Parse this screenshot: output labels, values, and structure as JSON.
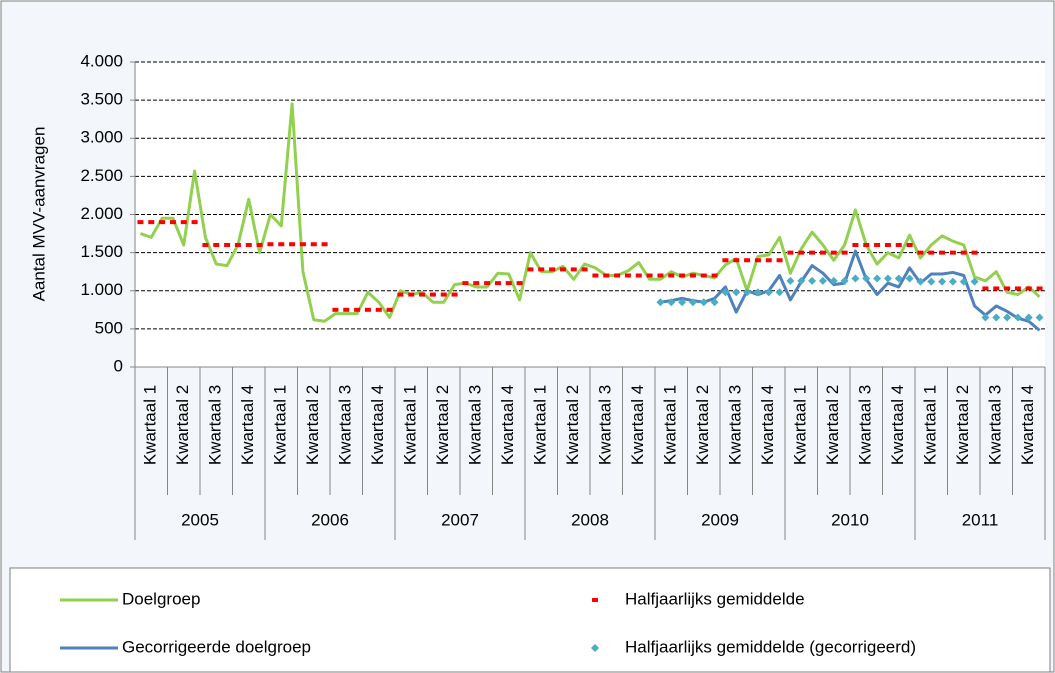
{
  "chart_data": {
    "type": "line",
    "y_label": "Aantal MVV-aanvragen",
    "years": [
      "2005",
      "2006",
      "2007",
      "2008",
      "2009",
      "2010",
      "2011"
    ],
    "quarters": [
      "Kwartaal 1",
      "Kwartaal 2",
      "Kwartaal 3",
      "Kwartaal 4",
      "Kwartaal 1",
      "Kwartaal 2",
      "Kwartaal 3",
      "Kwartaal 4",
      "Kwartaal 1",
      "Kwartaal 2",
      "Kwartaal 3",
      "Kwartaal 4",
      "Kwartaal 1",
      "Kwartaal 2",
      "Kwartaal 3",
      "Kwartaal 4",
      "Kwartaal 1",
      "Kwartaal 2",
      "Kwartaal 3",
      "Kwartaal 4",
      "Kwartaal 1",
      "Kwartaal 2",
      "Kwartaal 3",
      "Kwartaal 4",
      "Kwartaal 1",
      "Kwartaal 2",
      "Kwartaal 3",
      "Kwartaal 4"
    ],
    "ylim": [
      0,
      4000
    ],
    "yticks": [
      0,
      500,
      {
        "value": 1000,
        "label": "1.000"
      },
      {
        "value": 1500,
        "label": "1.500"
      },
      {
        "value": 2000,
        "label": "2.000"
      },
      {
        "value": 2500,
        "label": "2.500"
      },
      {
        "value": 3000,
        "label": "3.000"
      },
      {
        "value": 3500,
        "label": "3.500"
      },
      {
        "value": 4000,
        "label": "4.000"
      }
    ],
    "grid": true,
    "series": [
      {
        "name": "Doelgroep",
        "color": "#92d050",
        "style": "line",
        "values": [
          1750,
          1700,
          1950,
          1950,
          1600,
          2570,
          1700,
          1350,
          1330,
          1600,
          2200,
          1500,
          2000,
          1850,
          3450,
          1250,
          620,
          600,
          700,
          700,
          700,
          980,
          850,
          650,
          1000,
          950,
          980,
          850,
          850,
          1080,
          1100,
          1050,
          1050,
          1230,
          1220,
          880,
          1500,
          1250,
          1250,
          1320,
          1150,
          1350,
          1300,
          1200,
          1200,
          1260,
          1370,
          1150,
          1150,
          1250,
          1180,
          1230,
          1200,
          1170,
          1340,
          1420,
          1000,
          1450,
          1470,
          1700,
          1230,
          1550,
          1770,
          1600,
          1400,
          1600,
          2060,
          1600,
          1350,
          1500,
          1430,
          1730,
          1430,
          1600,
          1720,
          1650,
          1600,
          1180,
          1130,
          1250,
          980,
          950,
          1050,
          920
        ]
      },
      {
        "name": "Halfjaarlijks gemiddelde",
        "color": "#ff0000",
        "style": "dash",
        "values": [
          1900,
          1900,
          1900,
          1900,
          1900,
          1900,
          1600,
          1600,
          1600,
          1600,
          1600,
          1600,
          1610,
          1610,
          1610,
          1610,
          1610,
          1610,
          750,
          750,
          750,
          750,
          750,
          750,
          950,
          950,
          950,
          950,
          950,
          950,
          1100,
          1100,
          1100,
          1100,
          1100,
          1100,
          1280,
          1280,
          1280,
          1280,
          1280,
          1280,
          1200,
          1200,
          1200,
          1200,
          1200,
          1200,
          1200,
          1200,
          1200,
          1200,
          1200,
          1200,
          1400,
          1400,
          1400,
          1400,
          1400,
          1400,
          1500,
          1500,
          1500,
          1500,
          1500,
          1500,
          1600,
          1600,
          1600,
          1600,
          1600,
          1600,
          1500,
          1500,
          1500,
          1500,
          1500,
          1500,
          1030,
          1030,
          1030,
          1030,
          1030,
          1030
        ]
      },
      {
        "name": "Gecorrigeerde doelgroep",
        "color": "#4f81bd",
        "style": "line",
        "values": [
          null,
          null,
          null,
          null,
          null,
          null,
          null,
          null,
          null,
          null,
          null,
          null,
          null,
          null,
          null,
          null,
          null,
          null,
          null,
          null,
          null,
          null,
          null,
          null,
          null,
          null,
          null,
          null,
          null,
          null,
          null,
          null,
          null,
          null,
          null,
          null,
          null,
          null,
          null,
          null,
          null,
          null,
          null,
          null,
          null,
          null,
          null,
          null,
          850,
          870,
          900,
          870,
          850,
          900,
          1050,
          720,
          1000,
          950,
          1000,
          1200,
          880,
          1120,
          1330,
          1230,
          1080,
          1100,
          1520,
          1150,
          950,
          1100,
          1050,
          1300,
          1100,
          1220,
          1220,
          1240,
          1200,
          800,
          680,
          800,
          730,
          640,
          600,
          480
        ]
      },
      {
        "name": "Halfjaarlijks gemiddelde (gecorrigeerd)",
        "color": "#4bacc6",
        "style": "diamond",
        "values": [
          null,
          null,
          null,
          null,
          null,
          null,
          null,
          null,
          null,
          null,
          null,
          null,
          null,
          null,
          null,
          null,
          null,
          null,
          null,
          null,
          null,
          null,
          null,
          null,
          null,
          null,
          null,
          null,
          null,
          null,
          null,
          null,
          null,
          null,
          null,
          null,
          null,
          null,
          null,
          null,
          null,
          null,
          null,
          null,
          null,
          null,
          null,
          null,
          850,
          850,
          850,
          850,
          850,
          850,
          980,
          980,
          980,
          980,
          980,
          980,
          1130,
          1130,
          1130,
          1130,
          1130,
          1130,
          1160,
          1160,
          1160,
          1160,
          1160,
          1160,
          1120,
          1120,
          1120,
          1120,
          1120,
          1120,
          650,
          650,
          650,
          650,
          650,
          650
        ]
      }
    ]
  }
}
